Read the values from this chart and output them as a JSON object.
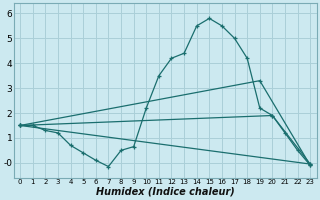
{
  "xlabel": "Humidex (Indice chaleur)",
  "bg_color": "#cce9f0",
  "grid_color": "#aacfd8",
  "line_color": "#1a6e6e",
  "xlim": [
    -0.5,
    23.5
  ],
  "ylim": [
    -0.6,
    6.4
  ],
  "xticks": [
    0,
    1,
    2,
    3,
    4,
    5,
    6,
    7,
    8,
    9,
    10,
    11,
    12,
    13,
    14,
    15,
    16,
    17,
    18,
    19,
    20,
    21,
    22,
    23
  ],
  "yticks": [
    0,
    1,
    2,
    3,
    4,
    5,
    6
  ],
  "ytick_labels": [
    "-0",
    "1",
    "2",
    "3",
    "4",
    "5",
    "6"
  ],
  "series0_x": [
    0,
    1,
    2,
    3,
    4,
    5,
    6,
    7,
    8,
    9,
    10,
    11,
    12,
    13,
    14,
    15,
    16,
    17,
    18,
    19,
    20,
    21,
    22,
    23
  ],
  "series0_y": [
    1.5,
    1.5,
    1.3,
    1.2,
    0.7,
    0.4,
    0.1,
    -0.15,
    0.5,
    0.65,
    2.2,
    3.5,
    4.2,
    4.4,
    5.5,
    5.8,
    5.5,
    5.0,
    4.2,
    2.2,
    1.9,
    1.2,
    0.5,
    -0.1
  ],
  "series1_x": [
    0,
    19,
    23
  ],
  "series1_y": [
    1.5,
    3.3,
    -0.1
  ],
  "series2_x": [
    0,
    20,
    23
  ],
  "series2_y": [
    1.5,
    1.9,
    -0.05
  ],
  "series3_x": [
    0,
    23
  ],
  "series3_y": [
    1.5,
    -0.05
  ]
}
